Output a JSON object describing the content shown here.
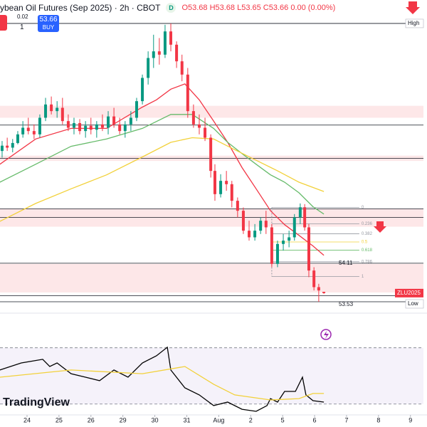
{
  "header": {
    "title": "ybean Oil Futures (Sep 2025) · 2h · CBOT",
    "badge": "D",
    "ohlc": "O53.68 H53.68 L53.65 C53.66 0.00 (0.00%)",
    "buy_price": "53.66",
    "buy_label": "BUY",
    "spread": "0.02",
    "quantity": "1"
  },
  "watermark": "TradingView",
  "chart_data": [
    {
      "type": "candlestick",
      "up_color": "#089981",
      "down_color": "#f23645",
      "xlim": [
        -0.846,
        12.518
      ],
      "ylim": [
        53.455,
        58.073
      ],
      "x": [
        -0.78,
        -0.62,
        -0.45,
        -0.29,
        -0.13,
        0.04,
        0.22,
        0.4,
        0.58,
        0.76,
        0.94,
        1.11,
        1.29,
        1.47,
        1.65,
        1.83,
        2.0,
        2.18,
        2.36,
        2.54,
        2.72,
        2.9,
        3.07,
        3.25,
        3.43,
        3.61,
        3.79,
        3.96,
        4.14,
        4.32,
        4.5,
        4.68,
        4.85,
        5.03,
        5.21,
        5.39,
        5.57,
        5.75,
        5.88,
        6.06,
        6.24,
        6.41,
        6.59,
        6.77,
        6.95,
        7.13,
        7.31,
        7.48,
        7.66,
        7.84,
        8.02,
        8.2,
        8.37,
        8.55,
        8.69,
        8.82,
        8.98,
        9.13,
        9.29
      ],
      "open": [
        55.8,
        55.88,
        55.85,
        55.92,
        56.05,
        56.15,
        56.1,
        56.05,
        56.3,
        56.5,
        56.4,
        56.45,
        56.25,
        56.15,
        56.22,
        56.1,
        56.18,
        56.12,
        56.2,
        56.15,
        56.32,
        56.2,
        56.1,
        56.2,
        56.3,
        56.55,
        56.9,
        57.2,
        57.3,
        57.25,
        57.6,
        57.4,
        57.15,
        56.95,
        56.4,
        56.2,
        56.15,
        56.0,
        55.5,
        55.15,
        55.35,
        55.3,
        55.05,
        54.9,
        54.6,
        54.5,
        54.6,
        54.75,
        54.65,
        54.1,
        54.4,
        54.45,
        54.5,
        54.8,
        54.95,
        54.65,
        54.0,
        53.75,
        53.68
      ],
      "high": [
        55.95,
        56.0,
        55.98,
        56.1,
        56.25,
        56.3,
        56.2,
        56.35,
        56.6,
        56.62,
        56.55,
        56.6,
        56.35,
        56.3,
        56.28,
        56.25,
        56.3,
        56.25,
        56.35,
        56.4,
        56.45,
        56.3,
        56.25,
        56.4,
        56.6,
        56.95,
        57.3,
        57.55,
        57.5,
        57.7,
        57.72,
        57.45,
        57.25,
        57.05,
        56.5,
        56.35,
        56.3,
        56.05,
        55.6,
        55.45,
        55.5,
        55.35,
        55.1,
        54.95,
        54.75,
        54.7,
        54.8,
        54.9,
        54.7,
        54.45,
        54.55,
        54.6,
        54.85,
        55.01,
        55.0,
        54.7,
        54.05,
        53.8,
        53.68
      ],
      "low": [
        55.7,
        55.8,
        55.78,
        55.9,
        56.0,
        56.05,
        55.98,
        56.0,
        56.25,
        56.35,
        56.3,
        56.2,
        56.1,
        56.05,
        56.05,
        56.0,
        56.05,
        56.0,
        56.1,
        56.05,
        56.15,
        56.05,
        56.0,
        56.1,
        56.25,
        56.5,
        56.8,
        57.05,
        57.1,
        57.2,
        57.3,
        57.05,
        56.85,
        56.3,
        56.15,
        56.05,
        55.95,
        55.4,
        55.05,
        55.1,
        55.2,
        54.95,
        54.8,
        54.55,
        54.45,
        54.45,
        54.55,
        54.55,
        54.05,
        54.05,
        54.3,
        54.35,
        54.45,
        54.7,
        54.6,
        53.9,
        53.7,
        53.53,
        53.65
      ],
      "close": [
        55.88,
        55.85,
        55.92,
        56.05,
        56.15,
        56.1,
        56.05,
        56.3,
        56.5,
        56.4,
        56.45,
        56.25,
        56.15,
        56.22,
        56.1,
        56.18,
        56.12,
        56.2,
        56.15,
        56.32,
        56.2,
        56.1,
        56.2,
        56.3,
        56.55,
        56.9,
        57.2,
        57.3,
        57.25,
        57.6,
        57.4,
        57.15,
        56.95,
        56.4,
        56.2,
        56.15,
        56.0,
        55.5,
        55.15,
        55.35,
        55.3,
        55.05,
        54.9,
        54.6,
        54.5,
        54.6,
        54.75,
        54.65,
        54.1,
        54.4,
        54.45,
        54.5,
        54.8,
        54.95,
        54.65,
        54.0,
        53.75,
        53.7,
        53.66
      ],
      "series": [
        {
          "color": "#f23645",
          "x": [
            -0.85,
            0.27,
            1.38,
            2.49,
            3.61,
            4.05,
            4.5,
            4.94,
            5.39,
            5.84,
            6.28,
            6.73,
            7.17,
            7.62,
            8.06,
            8.51,
            8.95,
            9.29
          ],
          "values": [
            55.6,
            55.98,
            56.14,
            56.14,
            56.46,
            56.57,
            56.73,
            56.81,
            56.57,
            56.25,
            55.93,
            55.55,
            55.23,
            54.9,
            54.69,
            54.53,
            54.37,
            54.23
          ]
        },
        {
          "color": "#66bb6a",
          "x": [
            -0.85,
            0.27,
            1.38,
            2.49,
            3.61,
            4.5,
            5.17,
            5.84,
            6.28,
            6.73,
            7.17,
            7.62,
            8.06,
            8.51,
            8.95,
            9.29
          ],
          "values": [
            55.33,
            55.6,
            55.87,
            55.98,
            56.14,
            56.35,
            56.35,
            56.14,
            55.93,
            55.76,
            55.6,
            55.44,
            55.33,
            55.17,
            54.96,
            54.85
          ]
        },
        {
          "color": "#f2d13a",
          "x": [
            -0.85,
            0.27,
            1.38,
            2.49,
            3.61,
            4.5,
            5.17,
            5.84,
            6.5,
            7.17,
            7.84,
            8.51,
            9.29
          ],
          "values": [
            54.74,
            55.01,
            55.23,
            55.44,
            55.71,
            55.93,
            56.0,
            55.98,
            55.82,
            55.66,
            55.5,
            55.33,
            55.19
          ]
        }
      ],
      "levels": [
        57.72,
        56.19,
        55.69,
        54.93,
        54.8,
        54.11,
        53.62,
        53.53
      ],
      "zones": [
        [
          56.3,
          56.48
        ],
        [
          55.65,
          55.73
        ],
        [
          54.66,
          54.93
        ],
        [
          53.67,
          54.1
        ]
      ],
      "level_tags": [
        {
          "value": 57.72,
          "label": "High"
        },
        {
          "value": 53.53,
          "label": "Low"
        }
      ],
      "marked_levels": [
        54.11,
        53.53
      ],
      "last_tag": {
        "value": 53.66,
        "label": "ZLU2025"
      },
      "fib": {
        "high": 54.95,
        "low": 53.91,
        "levels": [
          0,
          0.236,
          0.382,
          0.5,
          0.618,
          0.786,
          1
        ],
        "colors": [
          "#9598a1",
          "#9598a1",
          "#9598a1",
          "#f2d13a",
          "#66bb6a",
          "#9598a1",
          "#9598a1"
        ]
      }
    },
    {
      "type": "line",
      "xlim": [
        -0.846,
        12.518
      ],
      "ylim": [
        22.8,
        83.5
      ],
      "bands": [
        30,
        70
      ],
      "xticks": [
        {
          "value": 0,
          "label": "24"
        },
        {
          "value": 1,
          "label": "25"
        },
        {
          "value": 2,
          "label": "26"
        },
        {
          "value": 3,
          "label": "29"
        },
        {
          "value": 4,
          "label": "30"
        },
        {
          "value": 5,
          "label": "31"
        },
        {
          "value": 6,
          "label": "Aug"
        },
        {
          "value": 7,
          "label": "2"
        },
        {
          "value": 8,
          "label": "5"
        },
        {
          "value": 9,
          "label": "6"
        },
        {
          "value": 10,
          "label": "7"
        },
        {
          "value": 11,
          "label": "8"
        },
        {
          "value": 12,
          "label": "9"
        }
      ],
      "series": [
        {
          "color": "#000000",
          "x": [
            -0.85,
            -0.18,
            0.49,
            0.71,
            0.94,
            1.38,
            1.83,
            2.27,
            2.72,
            3.16,
            3.61,
            4.05,
            4.39,
            4.5,
            4.94,
            5.39,
            5.84,
            6.28,
            6.73,
            7.17,
            7.51,
            7.62,
            7.84,
            8.06,
            8.4,
            8.62,
            8.73,
            8.95,
            9.29
          ],
          "values": [
            54.2,
            59.2,
            61.8,
            56.7,
            59.2,
            51.6,
            49.1,
            46.6,
            54.2,
            49.1,
            59.2,
            64.3,
            70.4,
            54.2,
            41.5,
            36.5,
            28.9,
            31.4,
            26.3,
            24.8,
            28.9,
            33.9,
            31.4,
            39.0,
            39.0,
            49.1,
            36.5,
            32.4,
            31.4
          ]
        },
        {
          "color": "#f2d13a",
          "x": [
            -0.85,
            1.38,
            3.61,
            4.94,
            5.84,
            6.5,
            7.62,
            8.51,
            8.95,
            9.29
          ],
          "values": [
            49.1,
            54.2,
            51.6,
            56.7,
            44.1,
            36.5,
            32.9,
            33.9,
            37.5,
            37.5
          ]
        }
      ]
    }
  ]
}
